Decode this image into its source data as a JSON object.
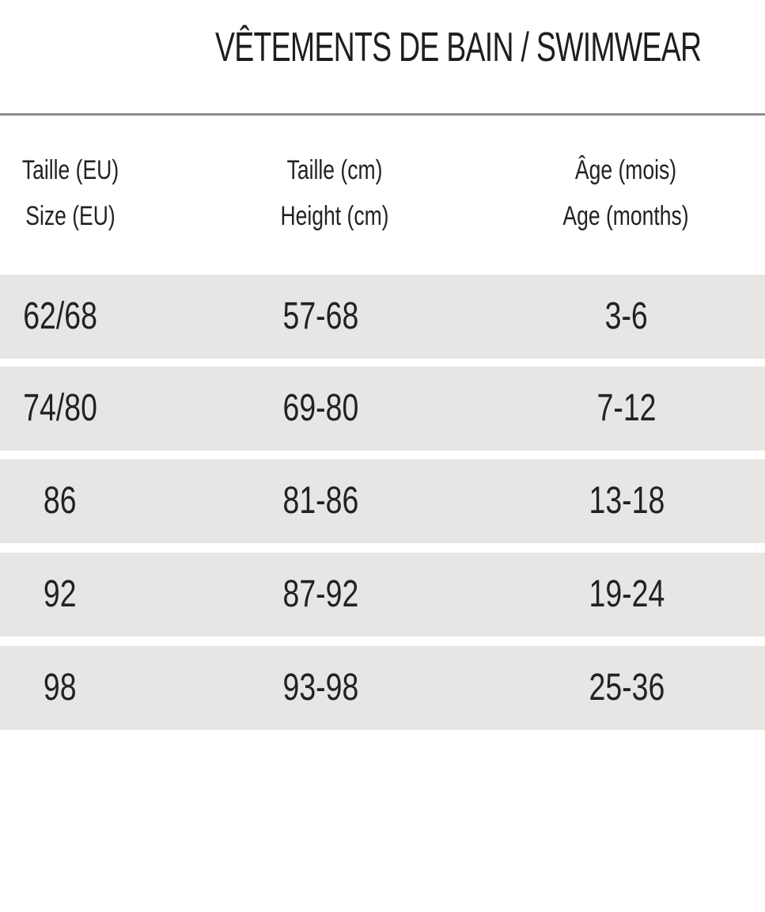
{
  "title": "VÊTEMENTS DE BAIN / SWIMWEAR",
  "header": {
    "size_fr": "Taille (EU)",
    "size_en": "Size (EU)",
    "height_fr": "Taille (cm)",
    "height_en": "Height (cm)",
    "age_fr": "Âge (mois)",
    "age_en": "Age (months)"
  },
  "rows": [
    {
      "size": "62/68",
      "height": "57-68",
      "age": "3-6"
    },
    {
      "size": "74/80",
      "height": "69-80",
      "age": "7-12"
    },
    {
      "size": "86",
      "height": "81-86",
      "age": "13-18"
    },
    {
      "size": "92",
      "height": "87-92",
      "age": "19-24"
    },
    {
      "size": "98",
      "height": "93-98",
      "age": "25-36"
    }
  ],
  "colors": {
    "row_background": "#e6e6e5",
    "rule": "#8c8c8c",
    "text": "#222222"
  }
}
